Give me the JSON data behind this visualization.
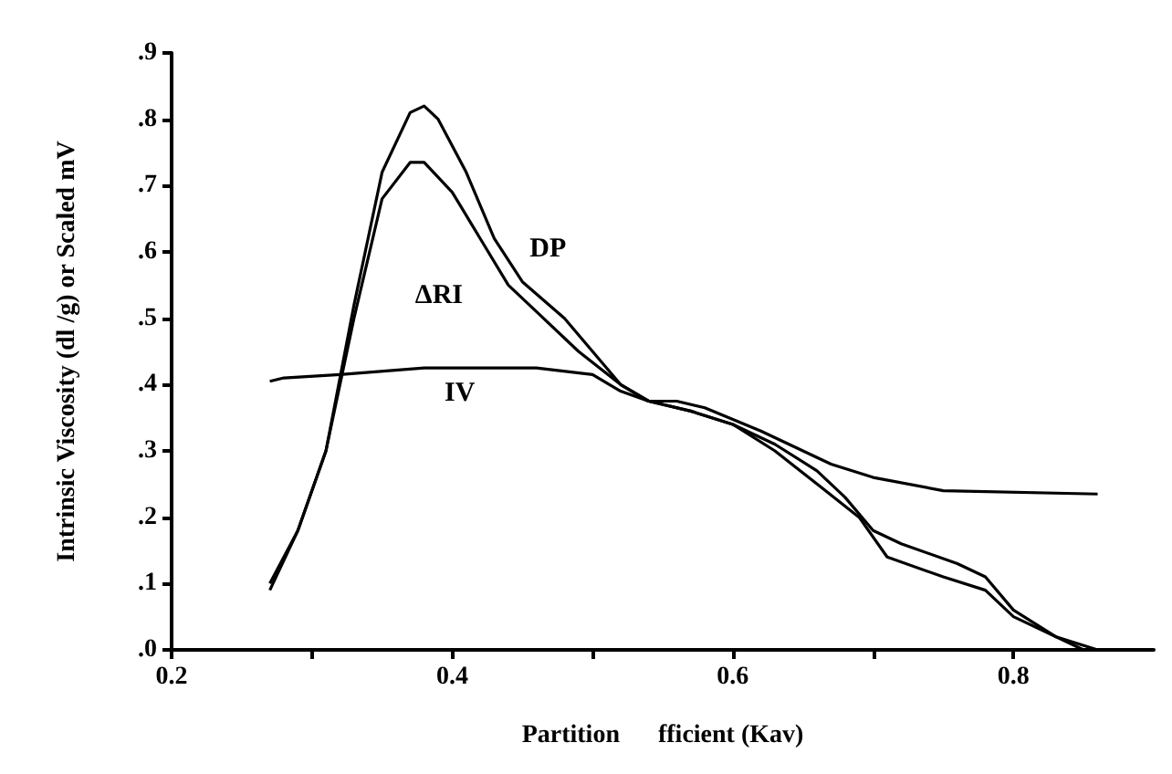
{
  "chart_data": {
    "type": "line",
    "xlabel": "Partition      fficient (Kav)",
    "ylabel": "Intrinsic Viscosity (dl /g) or Scaled mV",
    "xlim": [
      0.2,
      0.9
    ],
    "xticks": [
      0.2,
      {
        "value": 0.3,
        "label": null
      },
      0.4,
      {
        "value": 0.5,
        "label": null
      },
      0.6,
      {
        "value": 0.7,
        "label": null
      },
      0.8
    ],
    "ylim": [
      0,
      0.9
    ],
    "yticks": [
      {
        "value": 0,
        "label": ".0"
      },
      {
        "value": 0.1,
        "label": ".1"
      },
      {
        "value": 0.2,
        "label": ".2"
      },
      {
        "value": 0.3,
        "label": ".3"
      },
      {
        "value": 0.4,
        "label": ".4"
      },
      {
        "value": 0.5,
        "label": ".5"
      },
      {
        "value": 0.6,
        "label": ".6"
      },
      {
        "value": 0.7,
        "label": ".7"
      },
      {
        "value": 0.8,
        "label": ".8"
      },
      {
        "value": 0.9,
        "label": ".9"
      }
    ],
    "grid": false,
    "marker": "none",
    "line_style": "solid",
    "series": [
      {
        "name": "DP",
        "color": "#000000",
        "x": [
          0.27,
          0.29,
          0.31,
          0.33,
          0.35,
          0.37,
          0.38,
          0.39,
          0.41,
          0.43,
          0.45,
          0.48,
          0.5,
          0.52,
          0.54,
          0.57,
          0.6,
          0.63,
          0.66,
          0.68,
          0.7,
          0.72,
          0.76,
          0.78,
          0.8,
          0.83,
          0.86
        ],
        "values": [
          0.1,
          0.18,
          0.3,
          0.52,
          0.72,
          0.81,
          0.82,
          0.8,
          0.72,
          0.62,
          0.555,
          0.5,
          0.45,
          0.4,
          0.375,
          0.36,
          0.34,
          0.31,
          0.27,
          0.23,
          0.18,
          0.16,
          0.13,
          0.11,
          0.06,
          0.02,
          0
        ]
      },
      {
        "name": "ΔRI",
        "color": "#000000",
        "x": [
          0.27,
          0.29,
          0.31,
          0.33,
          0.35,
          0.37,
          0.38,
          0.4,
          0.42,
          0.44,
          0.46,
          0.49,
          0.52,
          0.54,
          0.57,
          0.6,
          0.63,
          0.66,
          0.69,
          0.71,
          0.75,
          0.78,
          0.8,
          0.85
        ],
        "values": [
          0.09,
          0.18,
          0.3,
          0.5,
          0.68,
          0.735,
          0.735,
          0.69,
          0.62,
          0.55,
          0.51,
          0.45,
          0.4,
          0.375,
          0.36,
          0.34,
          0.3,
          0.25,
          0.2,
          0.14,
          0.11,
          0.09,
          0.05,
          0
        ]
      },
      {
        "name": "IV",
        "color": "#000000",
        "x": [
          0.27,
          0.28,
          0.32,
          0.38,
          0.46,
          0.5,
          0.52,
          0.54,
          0.56,
          0.58,
          0.62,
          0.65,
          0.67,
          0.7,
          0.75,
          0.86
        ],
        "values": [
          0.405,
          0.41,
          0.415,
          0.425,
          0.425,
          0.415,
          0.39,
          0.375,
          0.375,
          0.365,
          0.33,
          0.3,
          0.28,
          0.26,
          0.24,
          0.235
        ]
      }
    ]
  }
}
